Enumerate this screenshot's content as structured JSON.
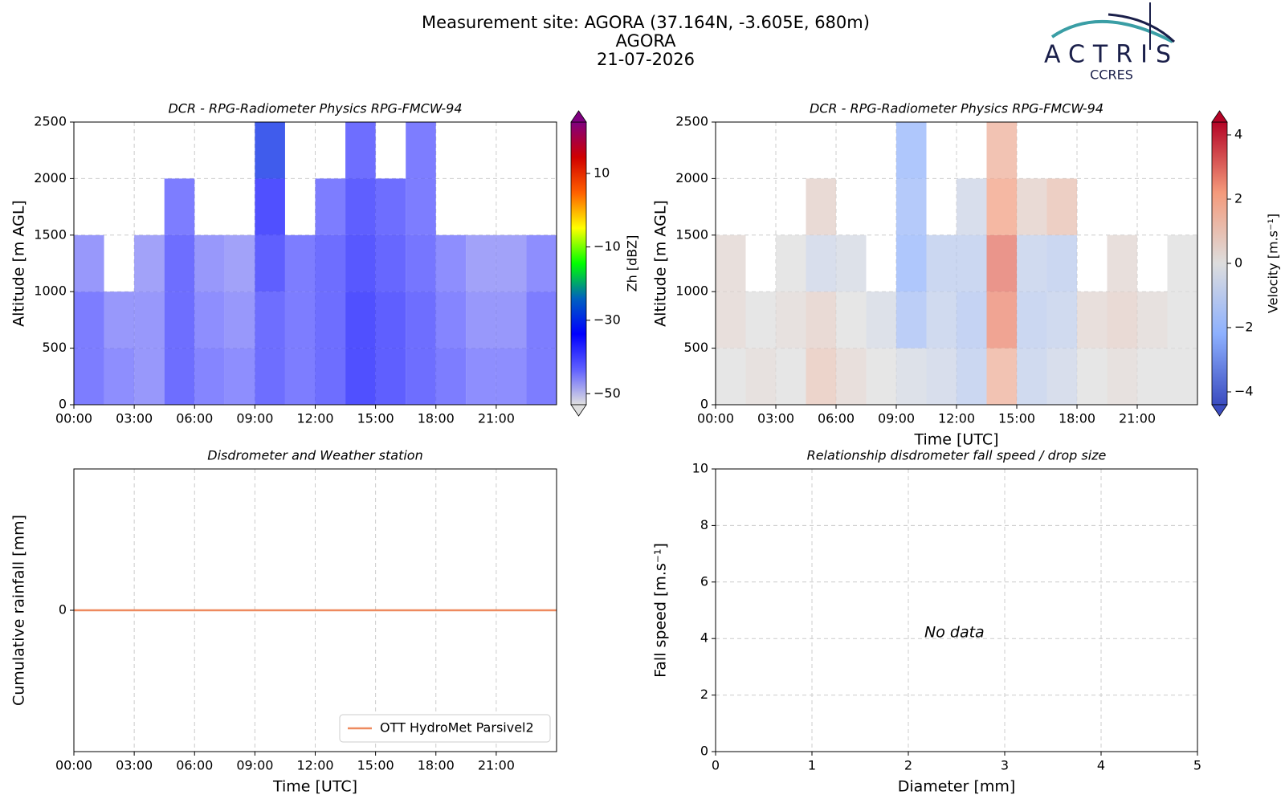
{
  "header": {
    "site": "Measurement site: AGORA (37.164N, -3.605E, 680m)",
    "name": "AGORA",
    "date": "21-07-2026"
  },
  "logo": {
    "text": "ACTRIS",
    "subtitle": "CCRES"
  },
  "chart_data": [
    {
      "type": "heatmap",
      "title": "DCR - RPG-Radiometer Physics RPG-FMCW-94",
      "ylabel": "Altitude [m AGL]",
      "xlim": [
        0,
        24
      ],
      "ylim": [
        0,
        2500
      ],
      "grid": true,
      "xticks": [
        {
          "value": 0,
          "label": "00:00"
        },
        {
          "value": 3,
          "label": "03:00"
        },
        {
          "value": 6,
          "label": "06:00"
        },
        {
          "value": 9,
          "label": "09:00"
        },
        {
          "value": 12,
          "label": "12:00"
        },
        {
          "value": 15,
          "label": "15:00"
        },
        {
          "value": 18,
          "label": "18:00"
        },
        {
          "value": 21,
          "label": "21:00"
        }
      ],
      "yticks": [
        0,
        500,
        1000,
        1500,
        2000,
        2500
      ],
      "x_edges": [
        0,
        1.5,
        3,
        4.5,
        6,
        7.5,
        9,
        10.5,
        12,
        13.5,
        15,
        16.5,
        18,
        19.5,
        21,
        22.5,
        24
      ],
      "y_edges": [
        0,
        500,
        1000,
        1500,
        2000,
        2500
      ],
      "z": [
        [
          -42,
          -44,
          -45,
          -40,
          -43,
          -44,
          -40,
          -42,
          -40,
          -36,
          -38,
          -40,
          -42,
          -44,
          -44,
          -42
        ],
        [
          -42,
          -45,
          -45,
          -40,
          -44,
          -45,
          -40,
          -42,
          -40,
          -36,
          -38,
          -40,
          -43,
          -45,
          -45,
          -42
        ],
        [
          -45,
          null,
          -46,
          -40,
          -45,
          -46,
          -38,
          -42,
          -40,
          -37,
          -39,
          -41,
          -44,
          -46,
          -46,
          -44
        ],
        [
          null,
          null,
          null,
          -42,
          null,
          null,
          -36,
          null,
          -42,
          -38,
          -40,
          -42,
          null,
          null,
          null,
          null
        ],
        [
          null,
          null,
          null,
          null,
          null,
          null,
          -30,
          null,
          null,
          -40,
          null,
          -42,
          null,
          null,
          null,
          null
        ]
      ],
      "clim": [
        -53,
        24
      ],
      "clabel": "Zh [dBZ]",
      "cticks": [
        {
          "value": -50,
          "label": "−50"
        },
        {
          "value": -30,
          "label": "−30"
        },
        {
          "value": -10,
          "label": "−10"
        },
        10
      ],
      "colormap": [
        "#e0e0e0",
        "#6060ff",
        "#0000ff",
        "#0060c0",
        "#00ff00",
        "#ffff00",
        "#ff6000",
        "#d00000",
        "#800080"
      ]
    },
    {
      "type": "heatmap",
      "title": "DCR - RPG-Radiometer Physics RPG-FMCW-94",
      "ylabel": "Altitude [m AGL]",
      "xlabel": "Time [UTC]",
      "xlim": [
        0,
        24
      ],
      "ylim": [
        0,
        2500
      ],
      "grid": true,
      "xticks": [
        {
          "value": 0,
          "label": "00:00"
        },
        {
          "value": 3,
          "label": "03:00"
        },
        {
          "value": 6,
          "label": "06:00"
        },
        {
          "value": 9,
          "label": "09:00"
        },
        {
          "value": 12,
          "label": "12:00"
        },
        {
          "value": 15,
          "label": "15:00"
        },
        {
          "value": 18,
          "label": "18:00"
        },
        {
          "value": 21,
          "label": "21:00"
        }
      ],
      "yticks": [
        0,
        500,
        1000,
        1500,
        2000,
        2500
      ],
      "x_edges": [
        0,
        1.5,
        3,
        4.5,
        6,
        7.5,
        9,
        10.5,
        12,
        13.5,
        15,
        16.5,
        18,
        19.5,
        21,
        22.5,
        24
      ],
      "y_edges": [
        0,
        500,
        1000,
        1500,
        2000,
        2500
      ],
      "z": [
        [
          0,
          0.2,
          0,
          0.8,
          0.3,
          0,
          -0.3,
          -0.5,
          -1,
          1.5,
          -0.8,
          -0.5,
          0,
          0.2,
          0,
          0
        ],
        [
          0.3,
          0,
          0.2,
          0.5,
          0,
          -0.3,
          -1.5,
          -0.8,
          -1.2,
          2.5,
          -1,
          -0.8,
          0.3,
          0.5,
          0.2,
          0
        ],
        [
          0.3,
          null,
          0,
          -0.5,
          -0.3,
          null,
          -2,
          -1,
          -1,
          2.8,
          -0.8,
          -1,
          null,
          0.3,
          null,
          0
        ],
        [
          null,
          null,
          null,
          0.5,
          null,
          null,
          -1.8,
          null,
          -0.5,
          2,
          0.5,
          1,
          null,
          null,
          null,
          null
        ],
        [
          null,
          null,
          null,
          null,
          null,
          null,
          -2,
          null,
          null,
          1.5,
          null,
          null,
          null,
          null,
          null,
          null
        ]
      ],
      "clim": [
        -4.4,
        4.4
      ],
      "clabel": "Velocity [m.s⁻¹]",
      "cticks": [
        {
          "value": -4,
          "label": "−4"
        },
        {
          "value": -2,
          "label": "−2"
        },
        0,
        2,
        4
      ],
      "colormap": [
        "#3b4cc0",
        "#8db0fe",
        "#dddddd",
        "#f49a7b",
        "#b40426"
      ]
    },
    {
      "type": "line",
      "title": "Disdrometer and Weather station",
      "ylabel": "Cumulative rainfall [mm]",
      "xlabel": "Time [UTC]",
      "xlim": [
        0,
        24
      ],
      "ylim": [
        -0.05,
        0.05
      ],
      "grid": true,
      "xticks": [
        {
          "value": 0,
          "label": "00:00"
        },
        {
          "value": 3,
          "label": "03:00"
        },
        {
          "value": 6,
          "label": "06:00"
        },
        {
          "value": 9,
          "label": "09:00"
        },
        {
          "value": 12,
          "label": "12:00"
        },
        {
          "value": 15,
          "label": "15:00"
        },
        {
          "value": 18,
          "label": "18:00"
        },
        {
          "value": 21,
          "label": "21:00"
        }
      ],
      "yticks": [
        0
      ],
      "x": [
        0,
        24
      ],
      "series": [
        {
          "name": "OTT HydroMet Parsivel2",
          "color": "#ee8a5f",
          "values": [
            0,
            0
          ]
        }
      ],
      "legend": "lower right"
    },
    {
      "type": "scatter",
      "title": "Relationship disdrometer fall speed / drop size",
      "ylabel": "Fall speed [m.s⁻¹]",
      "xlabel": "Diameter [mm]",
      "xlim": [
        0,
        5
      ],
      "ylim": [
        0,
        10
      ],
      "grid": true,
      "xticks": [
        0,
        1,
        2,
        3,
        4,
        5
      ],
      "yticks": [
        0,
        2,
        4,
        6,
        8,
        10
      ],
      "x": [],
      "y": [],
      "annotation": "No data"
    }
  ]
}
